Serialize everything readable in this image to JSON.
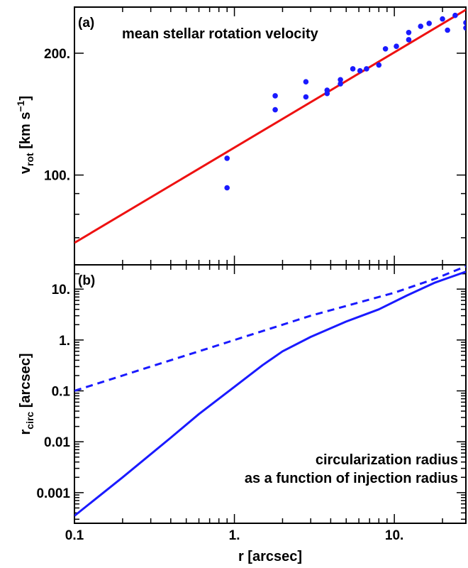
{
  "chart_data": [
    {
      "panel": "(a)",
      "type": "scatter",
      "annotation": "mean stellar rotation velocity",
      "ylabel_main": "v",
      "ylabel_sub": "rot",
      "ylabel_unit_pre": " [km s",
      "ylabel_unit_sup": "−1",
      "ylabel_unit_post": "]",
      "xscale": "log",
      "yscale": "log",
      "xlim": [
        0.1,
        28
      ],
      "ylim": [
        60,
        260
      ],
      "y_ticks": [
        {
          "value": 100,
          "label": "100."
        },
        {
          "value": 200,
          "label": "200."
        }
      ],
      "series": [
        {
          "kind": "points",
          "color": "#1a1aff",
          "points": [
            [
              0.9,
              110
            ],
            [
              0.9,
              93
            ],
            [
              1.8,
              157
            ],
            [
              1.8,
              145
            ],
            [
              2.8,
              170
            ],
            [
              2.8,
              156
            ],
            [
              3.8,
              162
            ],
            [
              3.8,
              159
            ],
            [
              4.6,
              172
            ],
            [
              4.6,
              168
            ],
            [
              5.5,
              183
            ],
            [
              6.1,
              181
            ],
            [
              6.7,
              183
            ],
            [
              8.0,
              187
            ],
            [
              8.8,
              205
            ],
            [
              10.3,
              208
            ],
            [
              12.3,
              225
            ],
            [
              12.3,
              216
            ],
            [
              14.6,
              233
            ],
            [
              16.5,
              237
            ],
            [
              20.0,
              243
            ],
            [
              21.5,
              228
            ],
            [
              24.0,
              248
            ],
            [
              28.0,
              238
            ],
            [
              28.0,
              231
            ]
          ]
        },
        {
          "kind": "line",
          "color": "#ee1111",
          "points": [
            [
              0.1,
              68
            ],
            [
              28,
              256
            ]
          ]
        }
      ]
    },
    {
      "panel": "(b)",
      "type": "line",
      "annotation_line1": "circularization radius",
      "annotation_line2": "as a function of injection radius",
      "ylabel_main": "r",
      "ylabel_sub": "circ",
      "ylabel_unit": " [arcsec]",
      "xlabel": "r [arcsec]",
      "xscale": "log",
      "yscale": "log",
      "xlim": [
        0.1,
        28
      ],
      "ylim": [
        0.00025,
        30
      ],
      "x_ticks": [
        {
          "value": 0.1,
          "label": "0.1"
        },
        {
          "value": 1,
          "label": "1."
        },
        {
          "value": 10,
          "label": "10."
        }
      ],
      "y_ticks": [
        {
          "value": 0.001,
          "label": "0.001"
        },
        {
          "value": 0.01,
          "label": "0.01"
        },
        {
          "value": 0.1,
          "label": "0.1"
        },
        {
          "value": 1,
          "label": "1."
        },
        {
          "value": 10,
          "label": "10."
        }
      ],
      "series": [
        {
          "style": "dashed",
          "color": "#1a1aff",
          "points": [
            [
              0.1,
              0.1
            ],
            [
              0.3,
              0.3
            ],
            [
              1,
              1
            ],
            [
              3,
              3
            ],
            [
              10,
              8.5
            ],
            [
              18,
              16
            ],
            [
              28,
              28
            ]
          ]
        },
        {
          "style": "solid",
          "color": "#1a1aff",
          "points": [
            [
              0.1,
              0.00035
            ],
            [
              0.2,
              0.002
            ],
            [
              0.4,
              0.012
            ],
            [
              0.6,
              0.035
            ],
            [
              0.8,
              0.07
            ],
            [
              1.0,
              0.12
            ],
            [
              1.5,
              0.32
            ],
            [
              2.0,
              0.6
            ],
            [
              3.0,
              1.15
            ],
            [
              5.0,
              2.3
            ],
            [
              8.0,
              4.0
            ],
            [
              12.0,
              7.5
            ],
            [
              18.0,
              13.5
            ],
            [
              28.0,
              22
            ]
          ]
        }
      ]
    }
  ]
}
